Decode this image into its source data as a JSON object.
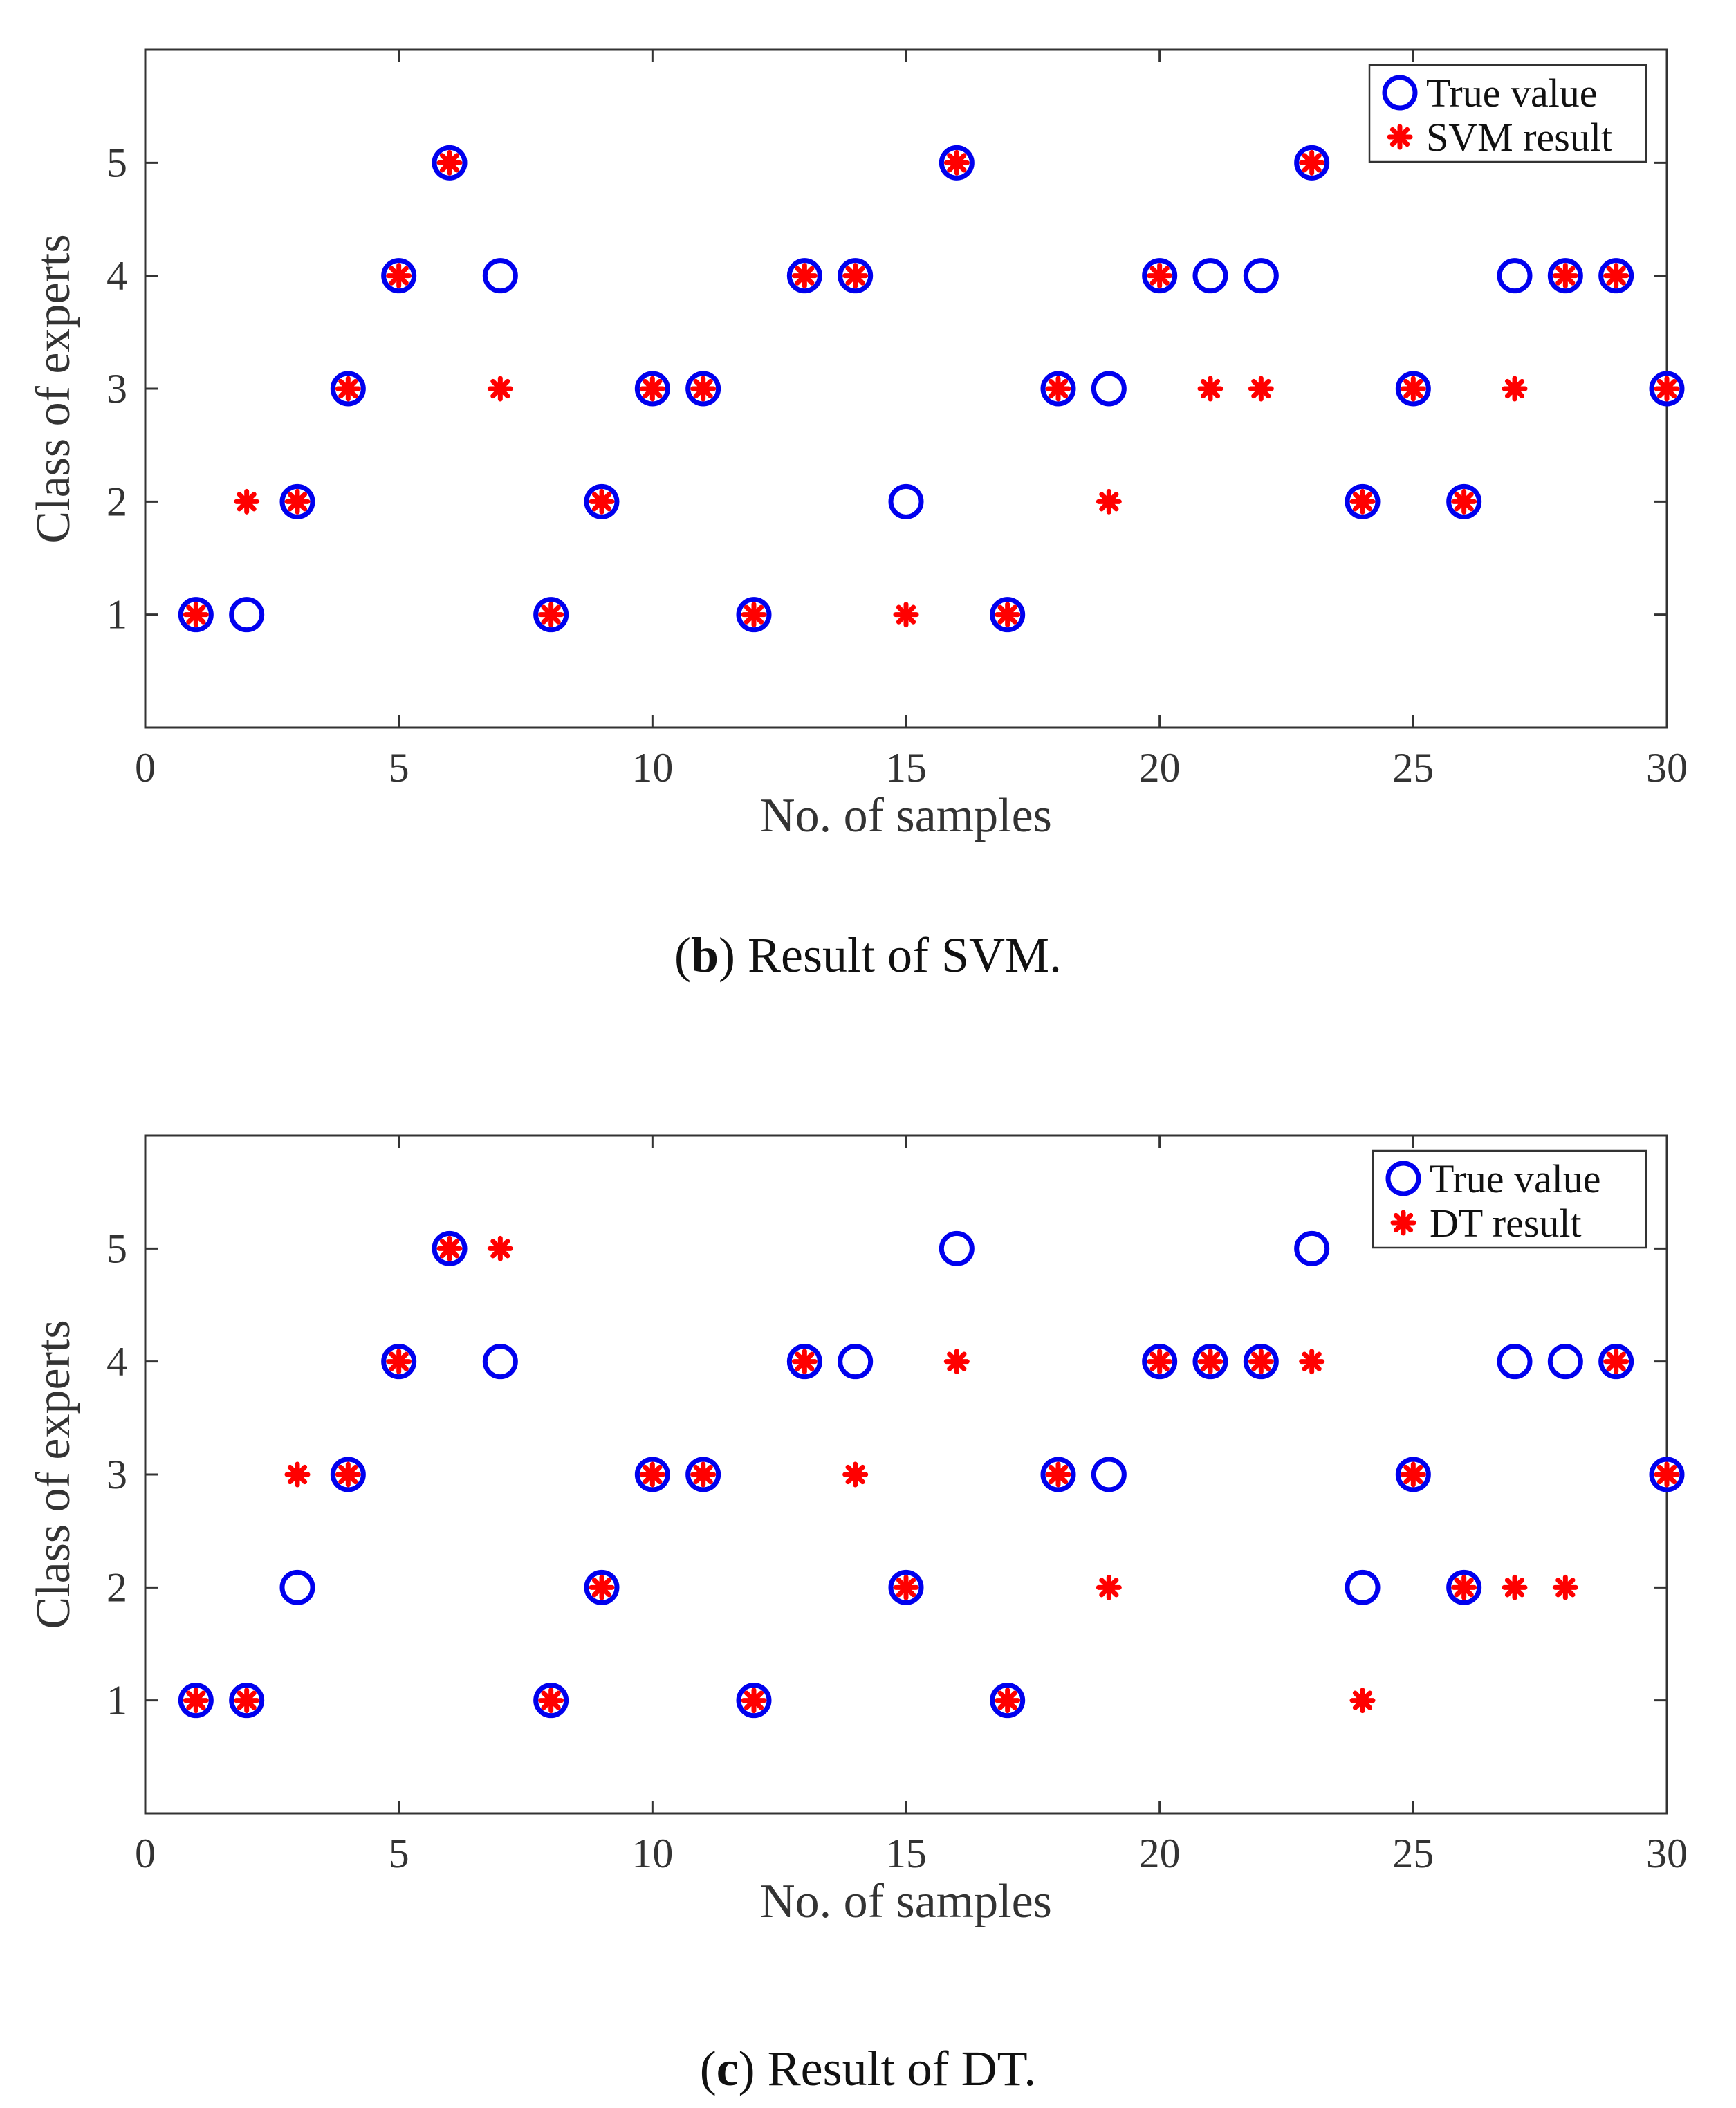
{
  "colors": {
    "true_marker": "#0000ee",
    "pred_marker": "#ff0000",
    "axis": "#333333"
  },
  "chart_data": [
    {
      "type": "scatter",
      "id": "svm",
      "xlabel": "No. of samples",
      "ylabel": "Class of experts",
      "xlim": [
        0,
        30
      ],
      "ylim": [
        0,
        6
      ],
      "xticks": [
        0,
        5,
        10,
        15,
        20,
        25,
        30
      ],
      "yticks": [
        1,
        2,
        3,
        4,
        5
      ],
      "x": [
        1,
        2,
        3,
        4,
        5,
        6,
        7,
        8,
        9,
        10,
        11,
        12,
        13,
        14,
        15,
        16,
        17,
        18,
        19,
        20,
        21,
        22,
        23,
        24,
        25,
        26,
        27,
        28,
        29,
        30
      ],
      "series": [
        {
          "name": "True value",
          "marker": "circle",
          "values": [
            1,
            1,
            2,
            3,
            4,
            5,
            4,
            1,
            2,
            3,
            3,
            1,
            4,
            4,
            2,
            5,
            1,
            3,
            3,
            4,
            4,
            4,
            5,
            2,
            3,
            2,
            4,
            4,
            4,
            3
          ]
        },
        {
          "name": "SVM result",
          "marker": "asterisk",
          "values": [
            1,
            2,
            2,
            3,
            4,
            5,
            3,
            1,
            2,
            3,
            3,
            1,
            4,
            4,
            1,
            5,
            1,
            3,
            2,
            4,
            3,
            3,
            5,
            2,
            3,
            2,
            3,
            4,
            4,
            3
          ]
        }
      ],
      "legend": "top-right",
      "caption_letter": "b",
      "caption_text": "Result of SVM."
    },
    {
      "type": "scatter",
      "id": "dt",
      "xlabel": "No. of samples",
      "ylabel": "Class of experts",
      "xlim": [
        0,
        30
      ],
      "ylim": [
        0,
        6
      ],
      "xticks": [
        0,
        5,
        10,
        15,
        20,
        25,
        30
      ],
      "yticks": [
        1,
        2,
        3,
        4,
        5
      ],
      "x": [
        1,
        2,
        3,
        4,
        5,
        6,
        7,
        8,
        9,
        10,
        11,
        12,
        13,
        14,
        15,
        16,
        17,
        18,
        19,
        20,
        21,
        22,
        23,
        24,
        25,
        26,
        27,
        28,
        29,
        30
      ],
      "series": [
        {
          "name": "True value",
          "marker": "circle",
          "values": [
            1,
            1,
            2,
            3,
            4,
            5,
            4,
            1,
            2,
            3,
            3,
            1,
            4,
            4,
            2,
            5,
            1,
            3,
            3,
            4,
            4,
            4,
            5,
            2,
            3,
            2,
            4,
            4,
            4,
            3
          ]
        },
        {
          "name": "DT result",
          "marker": "asterisk",
          "values": [
            1,
            1,
            3,
            3,
            4,
            5,
            5,
            1,
            2,
            3,
            3,
            1,
            4,
            3,
            2,
            4,
            1,
            3,
            2,
            4,
            4,
            4,
            4,
            1,
            3,
            2,
            2,
            2,
            4,
            3
          ]
        }
      ],
      "legend": "top-right",
      "caption_letter": "c",
      "caption_text": "Result of DT."
    }
  ]
}
